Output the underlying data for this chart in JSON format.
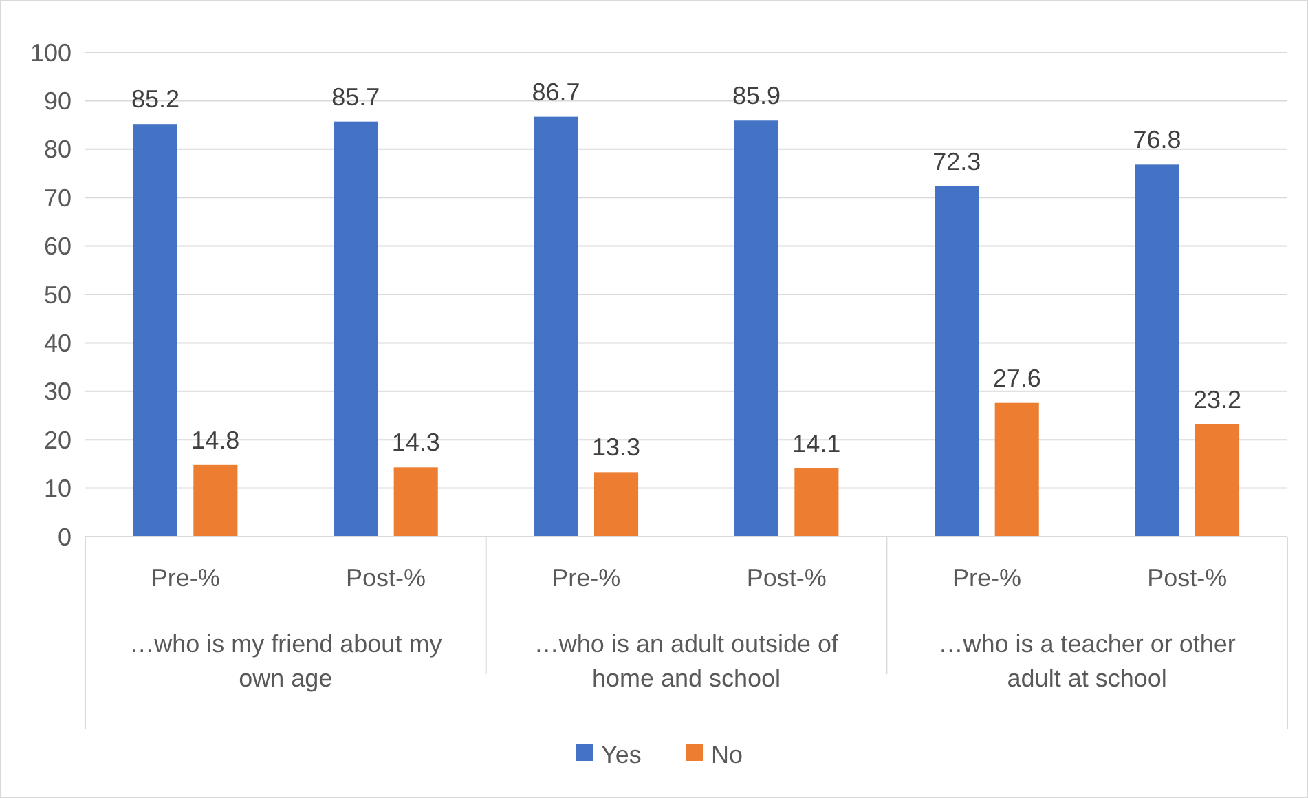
{
  "chart_data": {
    "type": "bar",
    "categories": [
      "Pre-%",
      "Post-%",
      "Pre-%",
      "Post-%",
      "Pre-%",
      "Post-%"
    ],
    "series": [
      {
        "name": "Yes",
        "color": "#4472c4",
        "values": [
          85.2,
          85.7,
          86.7,
          85.9,
          72.3,
          76.8
        ]
      },
      {
        "name": "No",
        "color": "#ed7d31",
        "values": [
          14.8,
          14.3,
          13.3,
          14.1,
          27.6,
          23.2
        ]
      }
    ],
    "annotations": [
      "…who is my friend about my own age",
      "…who is an adult outside of home and school",
      "…who is a teacher or other adult at school"
    ],
    "ylim": [
      0,
      100
    ],
    "yticks": [
      0,
      10,
      20,
      30,
      40,
      50,
      60,
      70,
      80,
      90,
      100
    ],
    "grid": "y",
    "data_labels": true,
    "legend": "bottom"
  }
}
